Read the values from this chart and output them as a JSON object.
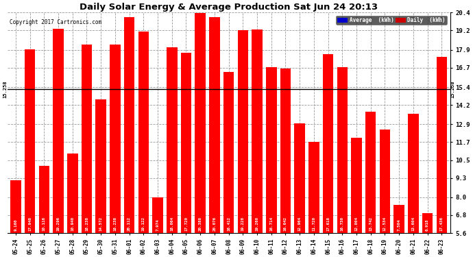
{
  "title": "Daily Solar Energy & Average Production Sat Jun 24 20:13",
  "copyright": "Copyright 2017 Cartronics.com",
  "average_value": 15.258,
  "bar_color": "#FF0000",
  "average_line_color": "#000000",
  "background_color": "#FFFFFF",
  "plot_bg_color": "#FFFFFF",
  "categories": [
    "05-24",
    "05-25",
    "05-26",
    "05-27",
    "05-28",
    "05-29",
    "05-30",
    "05-31",
    "06-01",
    "06-02",
    "06-03",
    "06-04",
    "06-05",
    "06-06",
    "06-07",
    "06-08",
    "06-09",
    "06-10",
    "06-11",
    "06-12",
    "06-13",
    "06-14",
    "06-15",
    "06-16",
    "06-17",
    "06-18",
    "06-19",
    "06-20",
    "06-21",
    "06-22",
    "06-23"
  ],
  "values": [
    9.16,
    17.948,
    10.116,
    19.296,
    10.94,
    18.238,
    14.572,
    18.238,
    20.112,
    19.122,
    7.974,
    18.064,
    17.72,
    20.388,
    20.076,
    16.412,
    19.228,
    19.26,
    16.714,
    16.642,
    12.964,
    11.72,
    17.618,
    16.73,
    12.004,
    13.742,
    12.534,
    7.504,
    13.604,
    6.918,
    17.436
  ],
  "yticks": [
    5.6,
    6.8,
    8.0,
    9.3,
    10.5,
    11.7,
    12.9,
    14.2,
    15.4,
    16.7,
    17.9,
    19.2,
    20.4
  ],
  "ylim_min": 5.6,
  "ylim_max": 20.4,
  "legend_avg_color": "#0000CC",
  "legend_daily_color": "#CC0000",
  "grid_color": "#999999"
}
